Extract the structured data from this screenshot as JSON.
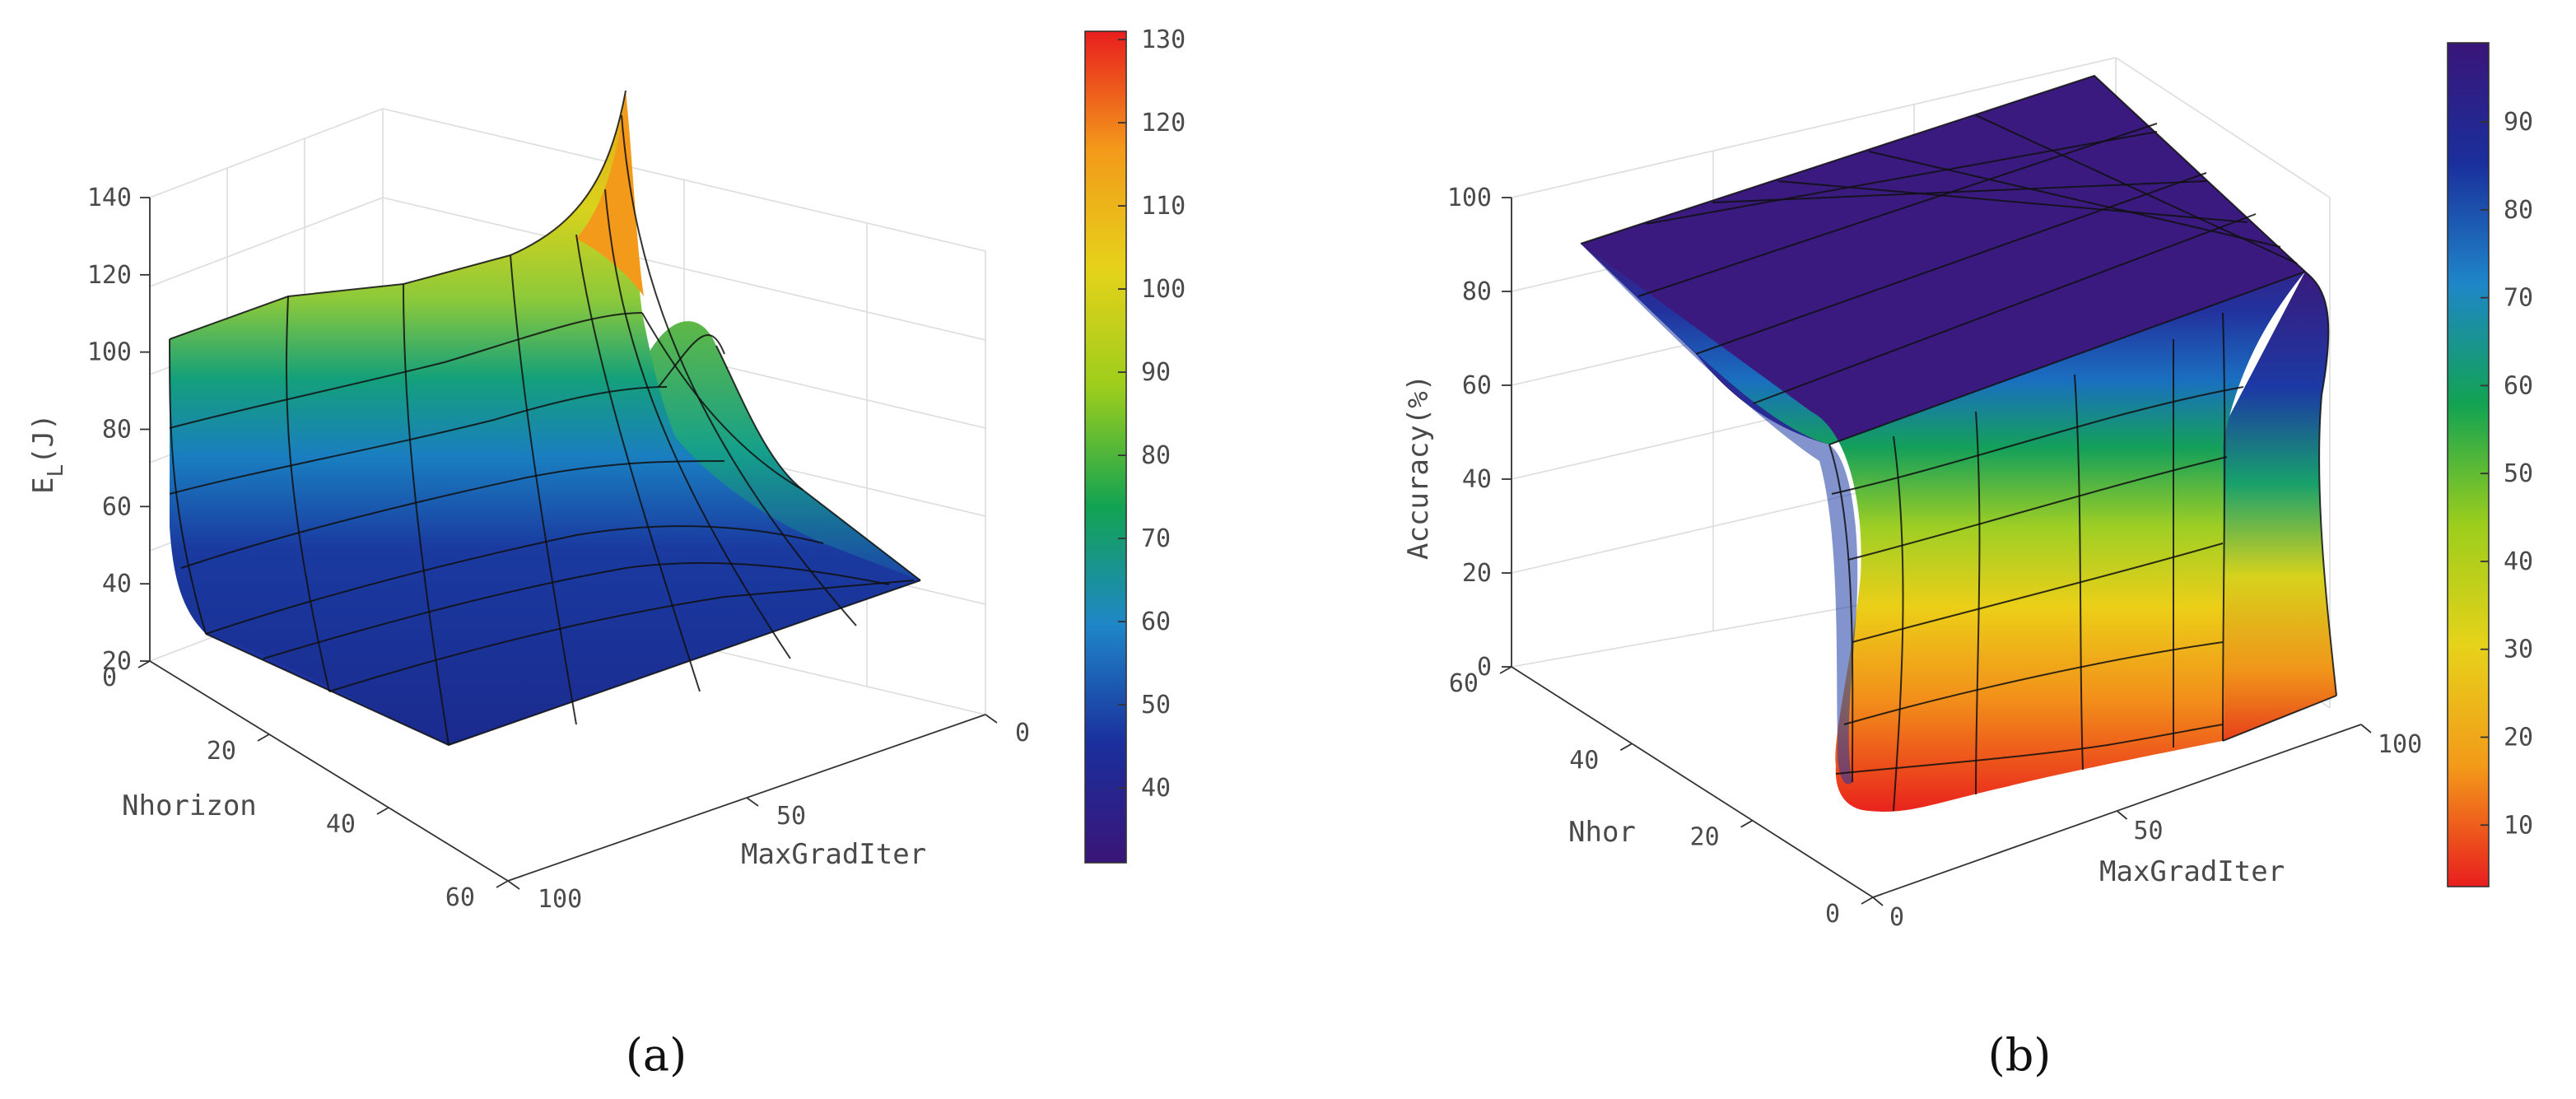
{
  "chart_data": [
    {
      "type": "surface",
      "panel_label": "(a)",
      "x_axis": {
        "label": "Nhorizon",
        "range": [
          0,
          60
        ],
        "ticks": [
          "0",
          "20",
          "40",
          "60"
        ]
      },
      "y_axis": {
        "label": "MaxGradIter",
        "range": [
          0,
          100
        ],
        "ticks": [
          "0",
          "50",
          "100"
        ]
      },
      "z_axis": {
        "label_main": "E",
        "label_sub": "L",
        "label_unit": "(J)",
        "range": [
          20,
          140
        ],
        "ticks": [
          "20",
          "40",
          "60",
          "80",
          "100",
          "120",
          "140"
        ]
      },
      "colorbar": {
        "range": [
          31,
          131
        ],
        "ticks": [
          "40",
          "50",
          "60",
          "70",
          "80",
          "90",
          "100",
          "110",
          "120",
          "130"
        ]
      },
      "colormap_stops": [
        "#3a1578",
        "#1a2f9c",
        "#1f86c8",
        "#12a352",
        "#9ccd1c",
        "#e6d21a",
        "#f39a1a",
        "#e81e1e"
      ],
      "grid": true
    },
    {
      "type": "surface",
      "panel_label": "(b)",
      "x_axis": {
        "label": "Nhor",
        "range": [
          0,
          60
        ],
        "ticks": [
          "0",
          "20",
          "40",
          "60"
        ]
      },
      "y_axis": {
        "label": "MaxGradIter",
        "range": [
          0,
          100
        ],
        "ticks": [
          "0",
          "50",
          "100"
        ]
      },
      "z_axis": {
        "label": "Accuracy(%)",
        "range": [
          0,
          100
        ],
        "ticks": [
          "0",
          "20",
          "40",
          "60",
          "80",
          "100"
        ]
      },
      "colorbar": {
        "range": [
          3,
          99
        ],
        "ticks": [
          "10",
          "20",
          "30",
          "40",
          "50",
          "60",
          "70",
          "80",
          "90"
        ]
      },
      "colormap_stops": [
        "#e81e1e",
        "#f39a1a",
        "#e6d21a",
        "#9ccd1c",
        "#12a352",
        "#1f86c8",
        "#1a2f9c",
        "#3a1578"
      ],
      "grid": true
    }
  ]
}
